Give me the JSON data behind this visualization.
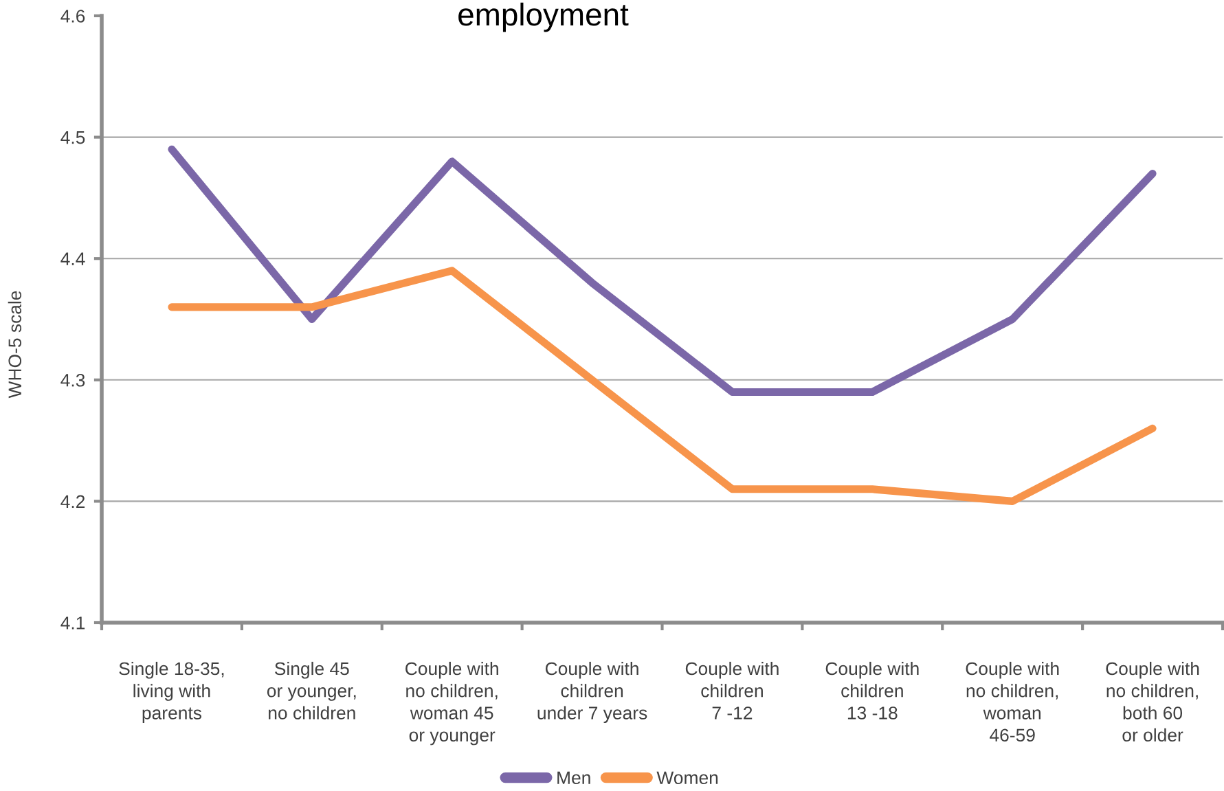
{
  "chart_data": {
    "type": "line",
    "title": "employment",
    "ylabel": "WHO-5 scale",
    "categories": [
      "Single 18-35,\nliving with\nparents",
      "Single 45\nor younger,\nno children",
      "Couple with\nno children,\nwoman 45\nor younger",
      "Couple with\nchildren\nunder 7 years",
      "Couple with\nchildren\n7 -12",
      "Couple with\nchildren\n13 -18",
      "Couple with\nno children,\nwoman\n46-59",
      "Couple with\nno children,\nboth 60\nor older"
    ],
    "series": [
      {
        "name": "Men",
        "color": "#7b67a8",
        "values": [
          4.49,
          4.35,
          4.48,
          4.38,
          4.29,
          4.29,
          4.35,
          4.47
        ]
      },
      {
        "name": "Women",
        "color": "#f7944b",
        "values": [
          4.36,
          4.36,
          4.39,
          4.3,
          4.21,
          4.21,
          4.2,
          4.26
        ]
      }
    ],
    "ylim": [
      4.1,
      4.6
    ],
    "yticks": [
      4.1,
      4.2,
      4.3,
      4.4,
      4.5,
      4.6
    ],
    "grid": "y",
    "legend": "bottom",
    "line_style": "solid"
  }
}
